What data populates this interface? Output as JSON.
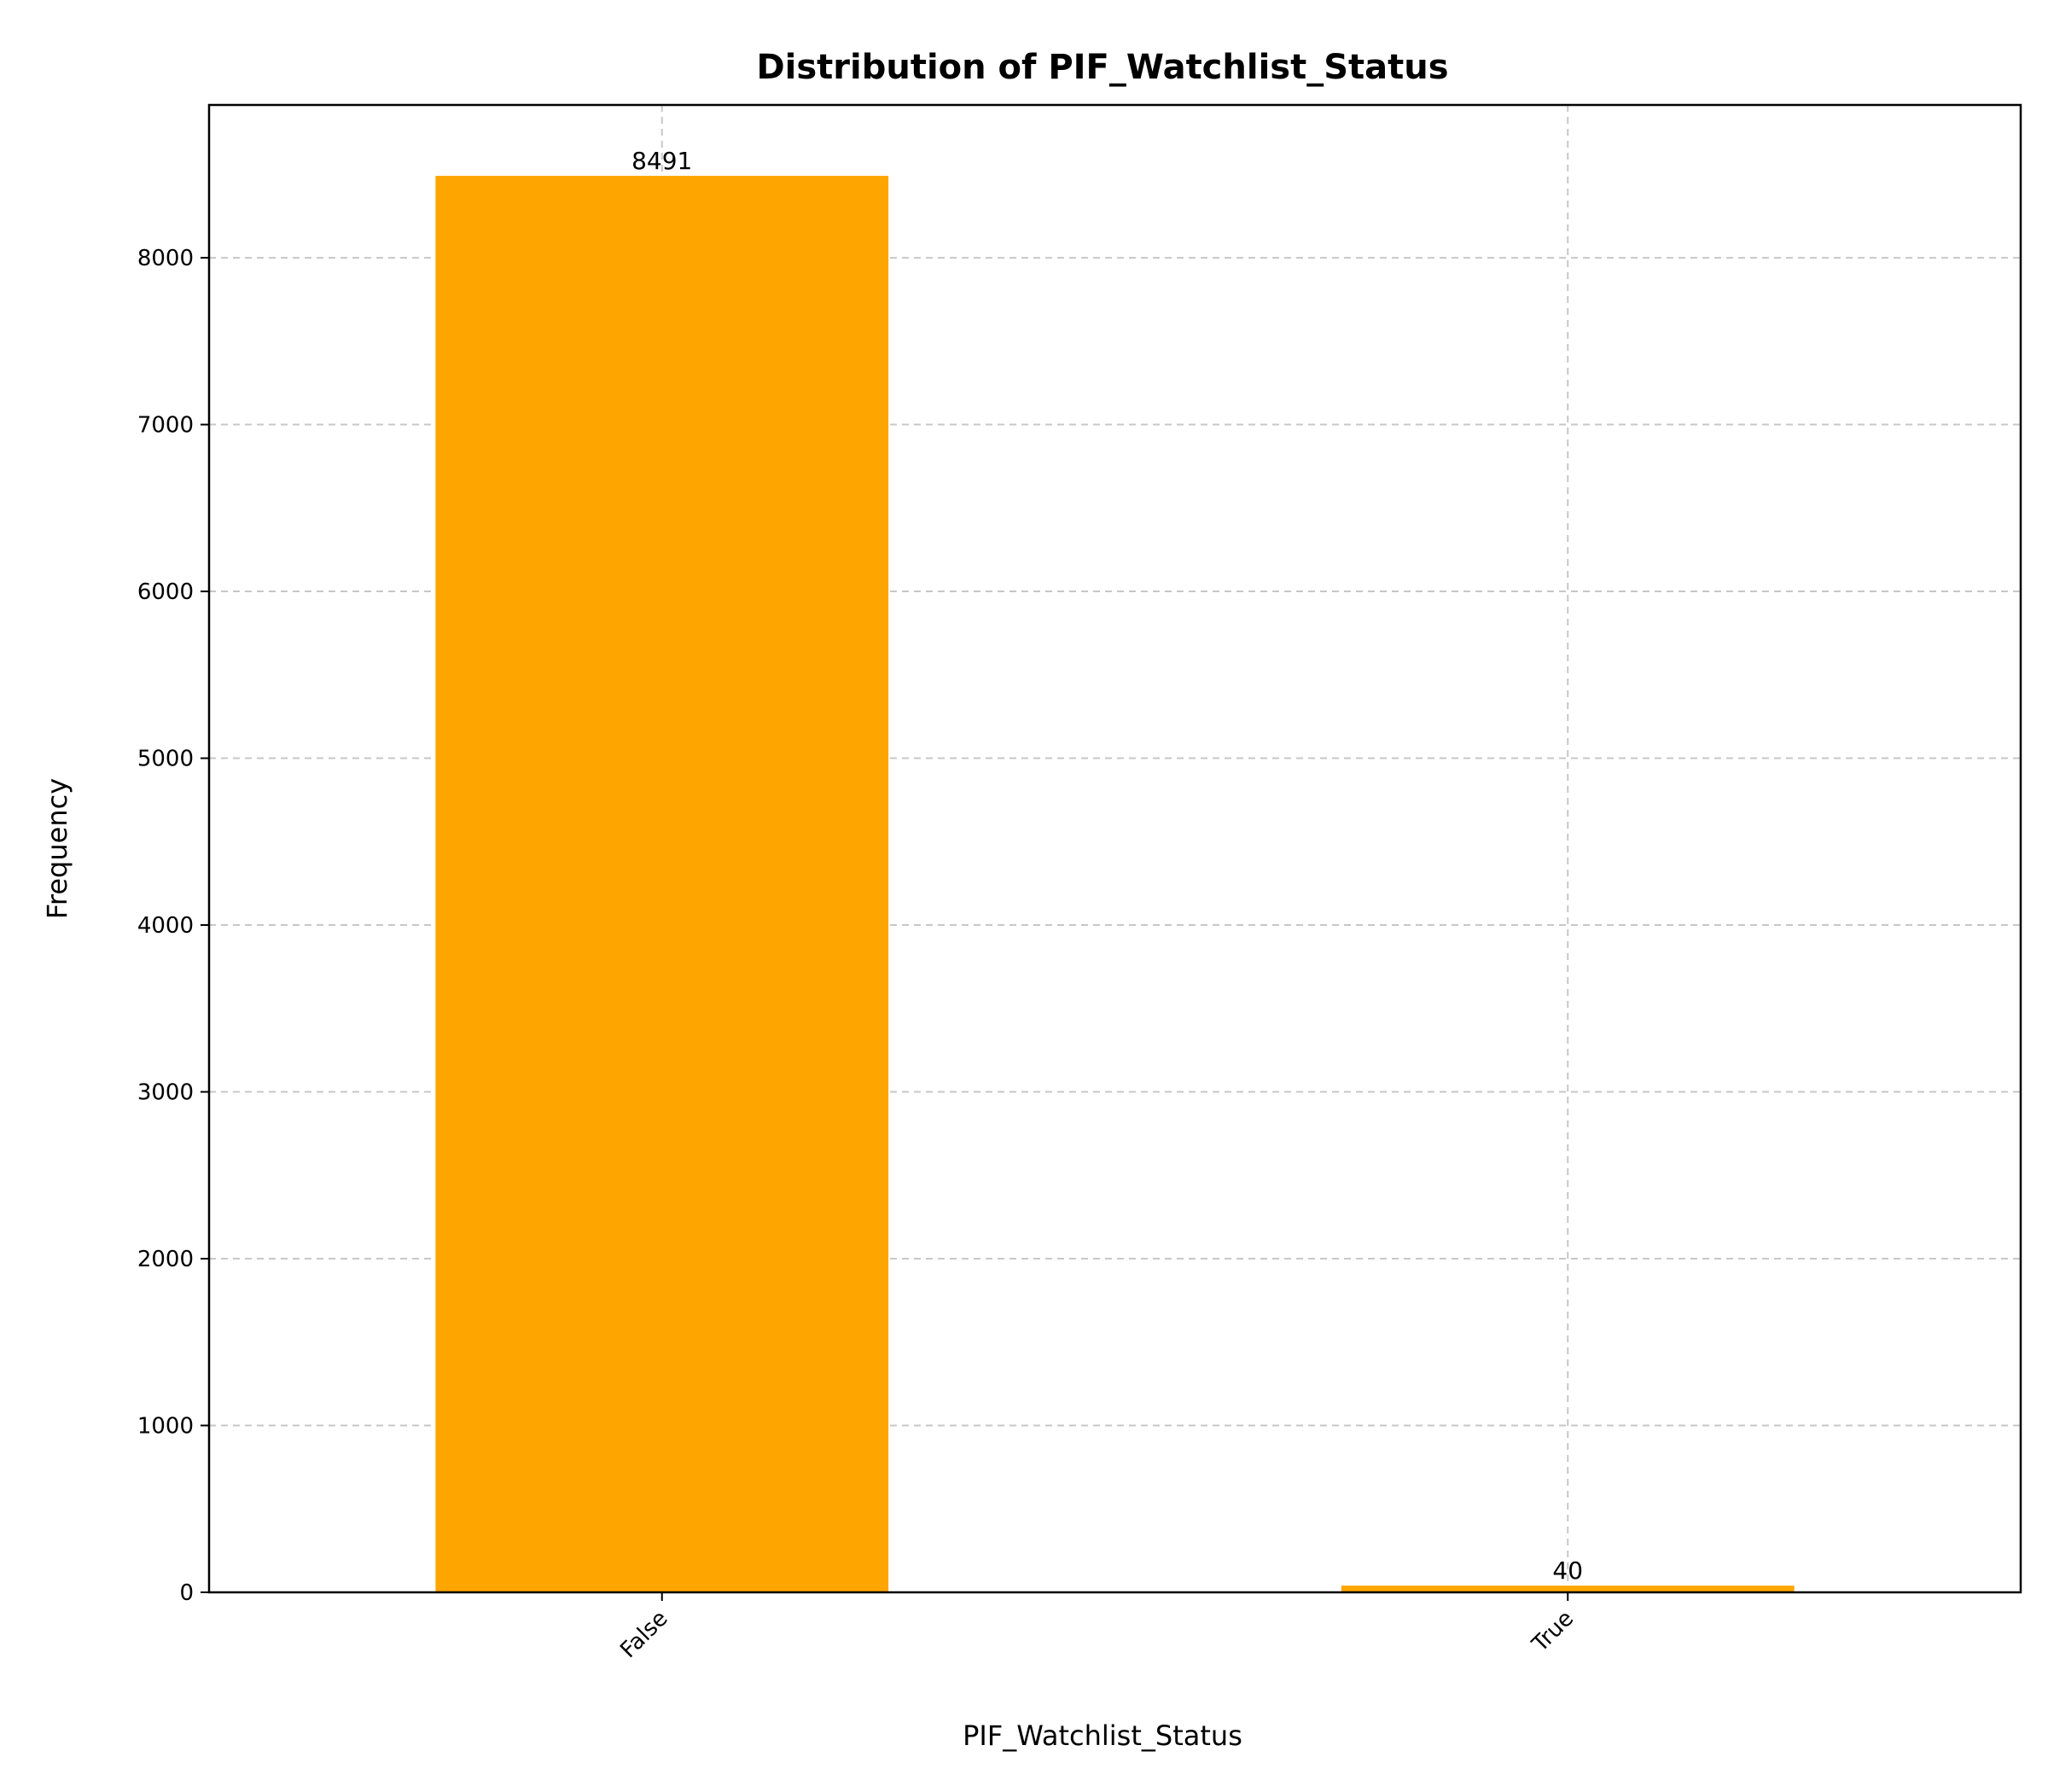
{
  "chart_data": {
    "type": "bar",
    "title": "Distribution of PIF_Watchlist_Status",
    "xlabel": "PIF_Watchlist_Status",
    "ylabel": "Frequency",
    "categories": [
      "False",
      "True"
    ],
    "values": [
      8491,
      40
    ],
    "data_labels": [
      "8491",
      "40"
    ],
    "ylim": [
      0,
      8916
    ],
    "yticks": [
      0,
      1000,
      2000,
      3000,
      4000,
      5000,
      6000,
      7000,
      8000
    ],
    "ytick_labels": [
      "0",
      "1000",
      "2000",
      "3000",
      "4000",
      "5000",
      "6000",
      "7000",
      "8000"
    ],
    "xtick_rotation": -45,
    "grid": true,
    "bar_color": "#FFA500"
  }
}
